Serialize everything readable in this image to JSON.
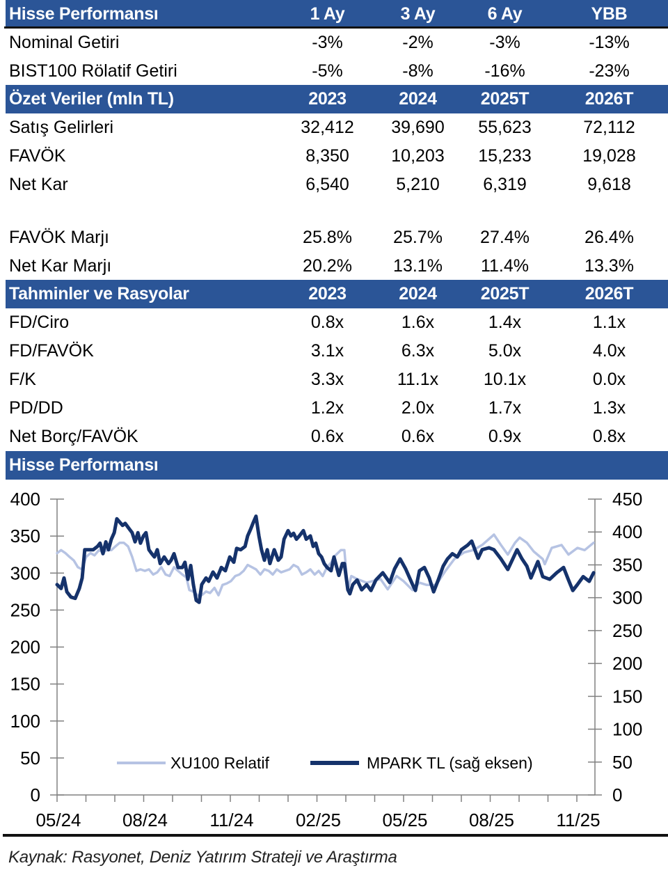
{
  "performance_table": {
    "header": {
      "label": "Hisse Performansı",
      "cols": [
        "1 Ay",
        "3 Ay",
        "6 Ay",
        "YBB"
      ]
    },
    "rows": [
      {
        "label": "Nominal Getiri",
        "values": [
          "-3%",
          "-2%",
          "-3%",
          "-13%"
        ]
      },
      {
        "label": "BIST100 Rölatif Getiri",
        "values": [
          "-5%",
          "-8%",
          "-16%",
          "-23%"
        ]
      }
    ]
  },
  "summary_table": {
    "header": {
      "label": "Özet Veriler (mln TL)",
      "cols": [
        "2023",
        "2024",
        "2025T",
        "2026T"
      ]
    },
    "rows": [
      {
        "label": "Satış Gelirleri",
        "values": [
          "32,412",
          "39,690",
          "55,623",
          "72,112"
        ]
      },
      {
        "label": "FAVÖK",
        "values": [
          "8,350",
          "10,203",
          "15,233",
          "19,028"
        ]
      },
      {
        "label": "Net Kar",
        "values": [
          "6,540",
          "5,210",
          "6,319",
          "9,618"
        ]
      },
      {
        "label": "FAVÖK Marjı",
        "values": [
          "25.8%",
          "25.7%",
          "27.4%",
          "26.4%"
        ]
      },
      {
        "label": "Net Kar Marjı",
        "values": [
          "20.2%",
          "13.1%",
          "11.4%",
          "13.3%"
        ]
      }
    ]
  },
  "ratios_table": {
    "header": {
      "label": "Tahminler ve Rasyolar",
      "cols": [
        "2023",
        "2024",
        "2025T",
        "2026T"
      ]
    },
    "rows": [
      {
        "label": "FD/Ciro",
        "values": [
          "0.8x",
          "1.6x",
          "1.4x",
          "1.1x"
        ]
      },
      {
        "label": "FD/FAVÖK",
        "values": [
          "3.1x",
          "6.3x",
          "5.0x",
          "4.0x"
        ]
      },
      {
        "label": "F/K",
        "values": [
          "3.3x",
          "11.1x",
          "10.1x",
          "0.0x"
        ]
      },
      {
        "label": "PD/DD",
        "values": [
          "1.2x",
          "2.0x",
          "1.7x",
          "1.3x"
        ]
      },
      {
        "label": "Net Borç/FAVÖK",
        "values": [
          "0.6x",
          "0.6x",
          "0.9x",
          "0.8x"
        ]
      }
    ]
  },
  "chart_section": {
    "title": "Hisse Performansı"
  },
  "colors": {
    "header_bg": "#2b5597",
    "header_text": "#ffffff",
    "xu100": "#b6c3e3",
    "mpark": "#15326b"
  },
  "chart_data": {
    "type": "line",
    "title": "Hisse Performansı",
    "xlabel": "",
    "ylabel_left": "",
    "ylabel_right": "",
    "x_unit": "months since 05/24",
    "x_range": [
      0,
      18.6
    ],
    "x_ticks": [
      {
        "t": 0,
        "label": "05/24"
      },
      {
        "t": 3,
        "label": "08/24"
      },
      {
        "t": 6,
        "label": "11/24"
      },
      {
        "t": 9,
        "label": "02/25"
      },
      {
        "t": 12,
        "label": "05/25"
      },
      {
        "t": 15,
        "label": "08/25"
      },
      {
        "t": 18,
        "label": "11/25"
      }
    ],
    "x_minor_tick_step_months": 1,
    "y_left": {
      "range": [
        0,
        400
      ],
      "ticks": [
        0,
        50,
        100,
        150,
        200,
        250,
        300,
        350,
        400
      ]
    },
    "y_right": {
      "range": [
        0,
        450
      ],
      "ticks": [
        0,
        50,
        100,
        150,
        200,
        250,
        300,
        350,
        400,
        450
      ]
    },
    "grid": false,
    "legend": {
      "placement": "bottom-center",
      "entries": [
        "XU100 Relatif",
        "MPARK TL (sağ eksen)"
      ]
    },
    "series": [
      {
        "name": "XU100 Relatif",
        "axis": "left",
        "color": "#b6c3e3",
        "t": [
          0.0,
          0.14,
          0.29,
          0.43,
          0.58,
          0.72,
          0.87,
          1.01,
          1.16,
          1.3,
          1.45,
          1.59,
          1.73,
          1.88,
          2.02,
          2.17,
          2.31,
          2.46,
          2.6,
          2.75,
          2.89,
          3.04,
          3.18,
          3.33,
          3.47,
          3.61,
          3.76,
          3.9,
          4.05,
          4.19,
          4.34,
          4.48,
          4.58,
          4.72,
          4.87,
          5.01,
          5.16,
          5.3,
          5.45,
          5.59,
          5.73,
          5.88,
          6.02,
          6.17,
          6.31,
          6.46,
          6.6,
          6.75,
          6.89,
          7.04,
          7.18,
          7.33,
          7.47,
          7.61,
          7.76,
          7.9,
          8.05,
          8.19,
          8.34,
          8.48,
          8.63,
          8.77,
          8.92,
          9.06,
          9.2,
          9.35,
          9.49,
          9.59,
          9.83,
          9.95,
          10.07,
          10.19,
          10.39,
          10.72,
          11.2,
          11.45,
          11.76,
          12.0,
          12.31,
          12.55,
          12.8,
          13.13,
          13.45,
          13.76,
          14.1,
          14.41,
          14.72,
          15.13,
          15.37,
          15.61,
          15.86,
          16.02,
          16.27,
          16.51,
          16.82,
          16.89,
          17.13,
          17.47,
          17.71,
          18.02,
          18.27,
          18.58
        ],
        "values": [
          327,
          331,
          327,
          322,
          317,
          308,
          305,
          322,
          327,
          324,
          331,
          328,
          331,
          331,
          336,
          341,
          341,
          336,
          322,
          303,
          305,
          303,
          305,
          298,
          301,
          308,
          298,
          296,
          308,
          303,
          298,
          294,
          277,
          275,
          270,
          270,
          275,
          273,
          280,
          270,
          284,
          286,
          289,
          296,
          298,
          303,
          311,
          308,
          305,
          298,
          305,
          303,
          298,
          305,
          301,
          303,
          305,
          311,
          308,
          298,
          301,
          305,
          298,
          303,
          296,
          308,
          314,
          322,
          331,
          331,
          278,
          296,
          292,
          287,
          292,
          278,
          296,
          289,
          277,
          287,
          284,
          284,
          303,
          319,
          328,
          331,
          338,
          352,
          338,
          325,
          341,
          348,
          341,
          329,
          319,
          312,
          334,
          338,
          325,
          334,
          331,
          341
        ]
      },
      {
        "name": "MPARK TL (sağ eksen)",
        "axis": "right",
        "color": "#15326b",
        "t": [
          0.0,
          0.14,
          0.24,
          0.34,
          0.48,
          0.63,
          0.77,
          0.87,
          0.96,
          1.25,
          1.4,
          1.49,
          1.59,
          1.69,
          1.78,
          1.88,
          1.98,
          2.07,
          2.17,
          2.27,
          2.36,
          2.51,
          2.6,
          2.7,
          2.8,
          2.89,
          2.99,
          3.08,
          3.18,
          3.28,
          3.37,
          3.47,
          3.57,
          3.71,
          3.86,
          3.95,
          4.05,
          4.19,
          4.34,
          4.43,
          4.53,
          4.63,
          4.72,
          4.82,
          4.92,
          5.01,
          5.16,
          5.25,
          5.4,
          5.54,
          5.69,
          5.83,
          5.98,
          6.12,
          6.22,
          6.36,
          6.51,
          6.6,
          6.7,
          6.8,
          6.89,
          6.99,
          7.08,
          7.18,
          7.28,
          7.37,
          7.52,
          7.66,
          7.76,
          7.86,
          8.0,
          8.1,
          8.19,
          8.29,
          8.39,
          8.53,
          8.63,
          8.77,
          8.87,
          8.96,
          9.06,
          9.16,
          9.25,
          9.35,
          9.49,
          9.59,
          9.76,
          9.88,
          9.95,
          10.07,
          10.14,
          10.24,
          10.39,
          10.55,
          10.72,
          10.87,
          11.04,
          11.28,
          11.52,
          11.69,
          11.88,
          12.07,
          12.31,
          12.41,
          12.55,
          12.72,
          12.89,
          13.04,
          13.2,
          13.37,
          13.52,
          13.69,
          13.86,
          14.0,
          14.22,
          14.36,
          14.58,
          14.72,
          14.96,
          15.13,
          15.37,
          15.61,
          15.78,
          15.93,
          16.1,
          16.27,
          16.41,
          16.65,
          16.82,
          17.06,
          17.3,
          17.54,
          17.71,
          17.86,
          18.02,
          18.22,
          18.43,
          18.58
        ],
        "values": [
          320,
          314,
          330,
          309,
          301,
          299,
          314,
          330,
          373,
          373,
          378,
          383,
          367,
          385,
          373,
          389,
          399,
          420,
          415,
          410,
          413,
          404,
          399,
          385,
          399,
          383,
          394,
          399,
          373,
          367,
          362,
          373,
          352,
          362,
          352,
          357,
          367,
          346,
          346,
          354,
          328,
          349,
          320,
          296,
          293,
          320,
          330,
          325,
          339,
          330,
          346,
          341,
          362,
          354,
          375,
          373,
          378,
          394,
          404,
          415,
          424,
          394,
          373,
          357,
          373,
          352,
          373,
          357,
          362,
          389,
          402,
          394,
          398,
          389,
          394,
          402,
          389,
          394,
          378,
          383,
          367,
          362,
          352,
          346,
          341,
          362,
          334,
          352,
          352,
          312,
          306,
          320,
          327,
          312,
          320,
          311,
          327,
          338,
          323,
          344,
          359,
          344,
          320,
          311,
          341,
          346,
          330,
          309,
          327,
          348,
          359,
          367,
          362,
          373,
          380,
          386,
          360,
          373,
          376,
          373,
          359,
          343,
          359,
          373,
          359,
          348,
          330,
          355,
          332,
          328,
          338,
          346,
          327,
          311,
          320,
          332,
          325,
          338
        ]
      }
    ]
  },
  "footer": {
    "source": "Kaynak: Rasyonet, Deniz Yatırım Strateji ve Araştırma"
  }
}
